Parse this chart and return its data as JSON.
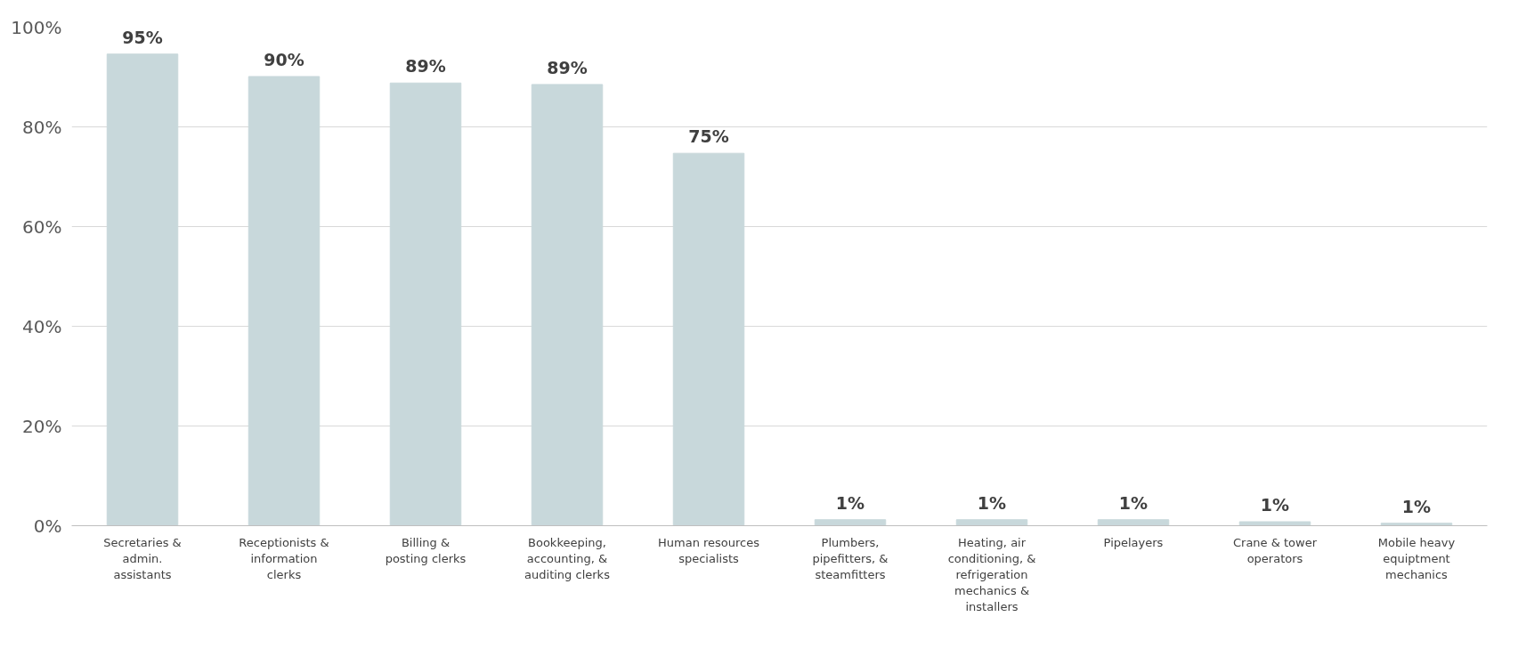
{
  "chart_data": {
    "type": "bar",
    "categories": [
      "Secretaries & admin. assistants",
      "Receptionists & information clerks",
      "Billing & posting clerks",
      "Bookkeeping, accounting, & auditing clerks",
      "Human resources specialists",
      "Plumbers, pipefitters, & steamfitters",
      "Heating, air conditioning, & refrigeration mechanics & installers",
      "Pipelayers",
      "Crane & tower operators",
      "Mobile heavy equiptment mechanics"
    ],
    "values": [
      94.6,
      90.1,
      88.8,
      88.5,
      74.7,
      1.2,
      1.2,
      1.2,
      0.8,
      0.5
    ],
    "value_labels": [
      "95%",
      "90%",
      "89%",
      "89%",
      "75%",
      "1%",
      "1%",
      "1%",
      "1%",
      "1%"
    ],
    "color": "#c8d8db",
    "ylim": [
      0,
      100
    ],
    "yticks": [
      {
        "value": 0,
        "label": "0%"
      },
      {
        "value": 20,
        "label": "20%"
      },
      {
        "value": 40,
        "label": "40%"
      },
      {
        "value": 60,
        "label": "60%"
      },
      {
        "value": 80,
        "label": "80%"
      },
      {
        "value": 100,
        "label": "100%"
      }
    ],
    "grid": "y"
  }
}
